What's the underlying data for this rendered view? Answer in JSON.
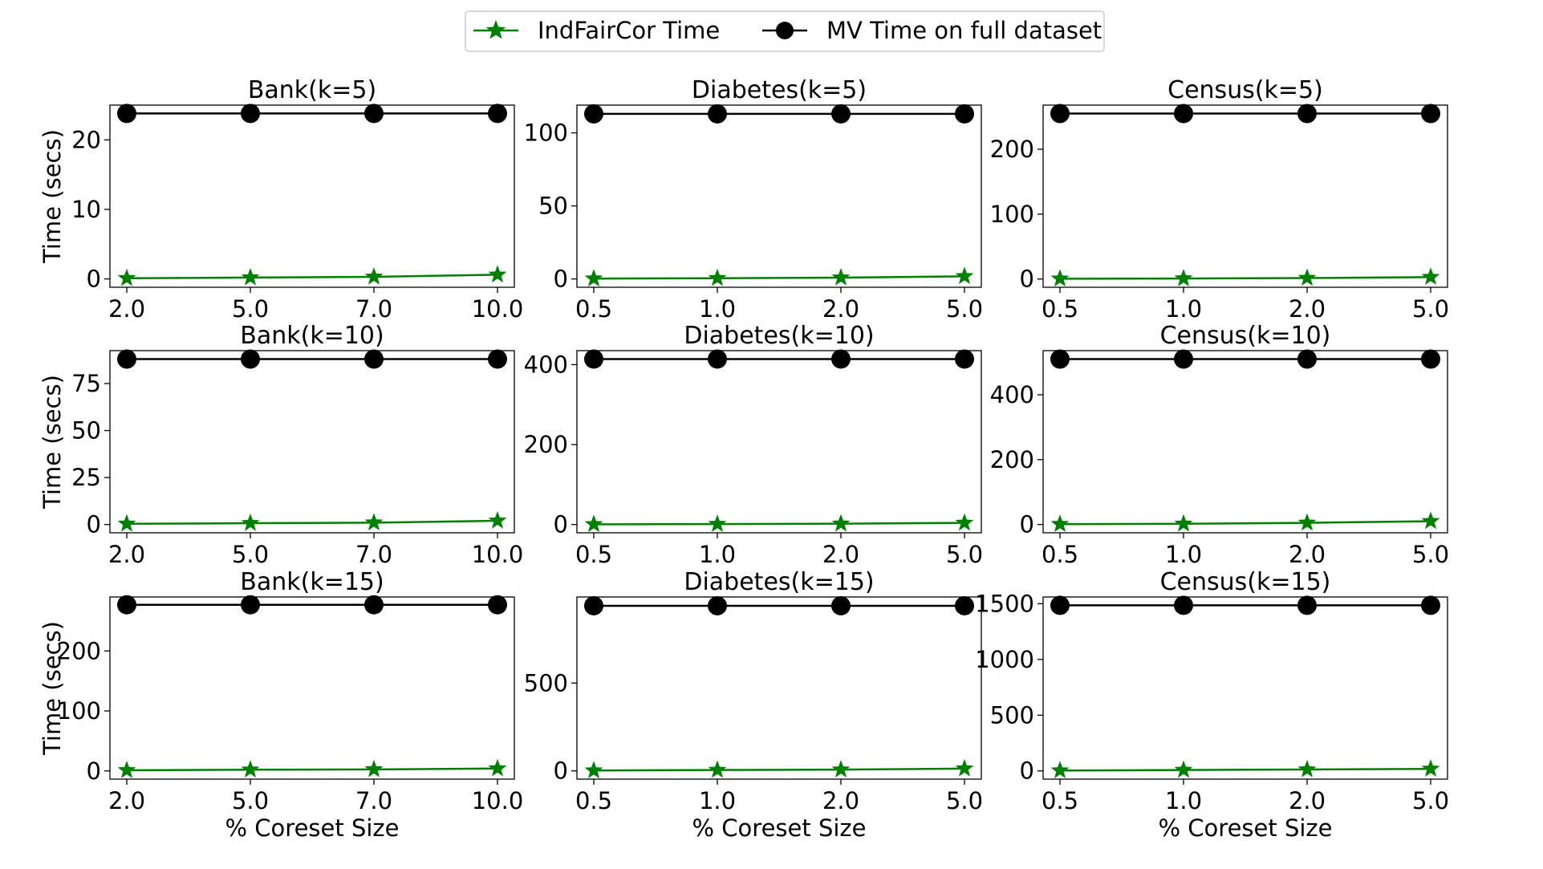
{
  "legend": {
    "placement": "top-center",
    "entries": [
      {
        "label": "IndFairCor Time",
        "color": "#008000",
        "marker": "star"
      },
      {
        "label": "MV Time on full dataset",
        "color": "#000000",
        "marker": "circle"
      }
    ]
  },
  "chart_data": [
    {
      "type": "line",
      "title": "Bank(k=5)",
      "xlabel": "",
      "ylabel": "Time (secs)",
      "categories": [
        "2.0",
        "5.0",
        "7.0",
        "10.0"
      ],
      "yticks": [
        0,
        10,
        20
      ],
      "ylim": [
        -1.2,
        25
      ],
      "series": [
        {
          "name": "IndFairCor Time",
          "values": [
            0.1,
            0.2,
            0.3,
            0.6
          ]
        },
        {
          "name": "MV Time on full dataset",
          "values": [
            23.8,
            23.8,
            23.8,
            23.8
          ]
        }
      ]
    },
    {
      "type": "line",
      "title": "Diabetes(k=5)",
      "xlabel": "",
      "ylabel": "",
      "categories": [
        "0.5",
        "1.0",
        "2.0",
        "5.0"
      ],
      "yticks": [
        0,
        50,
        100
      ],
      "ylim": [
        -5.7,
        119
      ],
      "series": [
        {
          "name": "IndFairCor Time",
          "values": [
            0.2,
            0.5,
            0.9,
            1.8
          ]
        },
        {
          "name": "MV Time on full dataset",
          "values": [
            113,
            113,
            113,
            113
          ]
        }
      ]
    },
    {
      "type": "line",
      "title": "Census(k=5)",
      "xlabel": "",
      "ylabel": "",
      "categories": [
        "0.5",
        "1.0",
        "2.0",
        "5.0"
      ],
      "yticks": [
        0,
        100,
        200
      ],
      "ylim": [
        -12.7,
        268
      ],
      "series": [
        {
          "name": "IndFairCor Time",
          "values": [
            0.5,
            0.8,
            1.5,
            3
          ]
        },
        {
          "name": "MV Time on full dataset",
          "values": [
            255,
            255,
            255,
            255
          ]
        }
      ]
    },
    {
      "type": "line",
      "title": "Bank(k=10)",
      "xlabel": "",
      "ylabel": "Time (secs)",
      "categories": [
        "2.0",
        "5.0",
        "7.0",
        "10.0"
      ],
      "yticks": [
        0,
        25,
        50,
        75
      ],
      "ylim": [
        -4.4,
        92.5
      ],
      "series": [
        {
          "name": "IndFairCor Time",
          "values": [
            0.4,
            0.7,
            1,
            2
          ]
        },
        {
          "name": "MV Time on full dataset",
          "values": [
            88,
            88,
            88,
            88
          ]
        }
      ]
    },
    {
      "type": "line",
      "title": "Diabetes(k=10)",
      "xlabel": "",
      "ylabel": "",
      "categories": [
        "0.5",
        "1.0",
        "2.0",
        "5.0"
      ],
      "yticks": [
        0,
        200,
        400
      ],
      "ylim": [
        -20.8,
        435
      ],
      "series": [
        {
          "name": "IndFairCor Time",
          "values": [
            0.5,
            1,
            2,
            4
          ]
        },
        {
          "name": "MV Time on full dataset",
          "values": [
            414,
            414,
            414,
            414
          ]
        }
      ]
    },
    {
      "type": "line",
      "title": "Census(k=10)",
      "xlabel": "",
      "ylabel": "",
      "categories": [
        "0.5",
        "1.0",
        "2.0",
        "5.0"
      ],
      "yticks": [
        0,
        200,
        400
      ],
      "ylim": [
        -25.7,
        536
      ],
      "series": [
        {
          "name": "IndFairCor Time",
          "values": [
            1,
            2,
            5,
            10
          ]
        },
        {
          "name": "MV Time on full dataset",
          "values": [
            510,
            510,
            510,
            510
          ]
        }
      ]
    },
    {
      "type": "line",
      "title": "Bank(k=15)",
      "xlabel": "% Coreset Size",
      "ylabel": "Time (secs)",
      "categories": [
        "2.0",
        "5.0",
        "7.0",
        "10.0"
      ],
      "yticks": [
        0,
        100,
        200
      ],
      "ylim": [
        -13.7,
        290
      ],
      "series": [
        {
          "name": "IndFairCor Time",
          "values": [
            1,
            2,
            2.5,
            4
          ]
        },
        {
          "name": "MV Time on full dataset",
          "values": [
            277,
            277,
            277,
            277
          ]
        }
      ]
    },
    {
      "type": "line",
      "title": "Diabetes(k=15)",
      "xlabel": "% Coreset Size",
      "ylabel": "",
      "categories": [
        "0.5",
        "1.0",
        "2.0",
        "5.0"
      ],
      "yticks": [
        0,
        500
      ],
      "ylim": [
        -47,
        990
      ],
      "series": [
        {
          "name": "IndFairCor Time",
          "values": [
            2,
            5,
            7,
            13
          ]
        },
        {
          "name": "MV Time on full dataset",
          "values": [
            940,
            940,
            940,
            940
          ]
        }
      ]
    },
    {
      "type": "line",
      "title": "Census(k=15)",
      "xlabel": "% Coreset Size",
      "ylabel": "",
      "categories": [
        "0.5",
        "1.0",
        "2.0",
        "5.0"
      ],
      "yticks": [
        0,
        500,
        1000,
        1500
      ],
      "ylim": [
        -74,
        1560
      ],
      "series": [
        {
          "name": "IndFairCor Time",
          "values": [
            3,
            8,
            12,
            18
          ]
        },
        {
          "name": "MV Time on full dataset",
          "values": [
            1485,
            1485,
            1485,
            1485
          ]
        }
      ]
    }
  ]
}
